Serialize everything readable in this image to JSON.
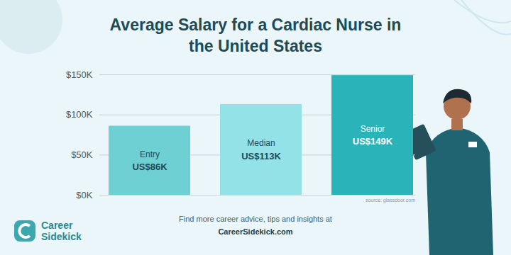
{
  "chart_data": {
    "type": "bar",
    "title": "Average Salary for a Cardiac Nurse in the United States",
    "categories": [
      "Entry",
      "Median",
      "Senior"
    ],
    "values": [
      86,
      113,
      149
    ],
    "value_labels": [
      "US$86K",
      "US$113K",
      "US$149K"
    ],
    "colors": [
      "#6fd0d4",
      "#93e2e8",
      "#2ab3b8"
    ],
    "ylim": [
      0,
      150
    ],
    "yticks": [
      {
        "value": 0,
        "label": "$0K"
      },
      {
        "value": 50,
        "label": "$50K"
      },
      {
        "value": 100,
        "label": "$100K"
      },
      {
        "value": 150,
        "label": "$150K"
      }
    ],
    "grid": true,
    "data_labels": true,
    "tick_labels": "y",
    "source": "source: glassdoor.com",
    "footer": [
      "Find more career advice, tips and insights at",
      "CareerSidekick.com"
    ],
    "logo": [
      "Career",
      "Sidekick"
    ]
  }
}
